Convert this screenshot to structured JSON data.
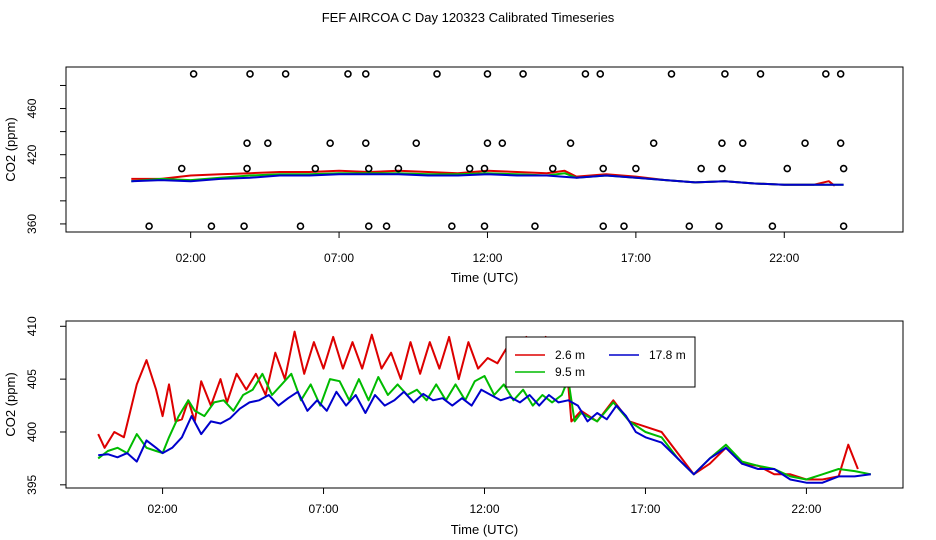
{
  "title": "FEF AIRCOA C  Day 120323  Calibrated Timeseries",
  "colors": {
    "s2_6": "#dd0000",
    "s9_5": "#00bb00",
    "s17_8": "#0000cc",
    "calib": "#000000"
  },
  "chart_data": [
    {
      "type": "line",
      "xlabel": "Time (UTC)",
      "ylabel": "CO2 (ppm)",
      "x_ticks": [
        "02:00",
        "07:00",
        "12:00",
        "17:00",
        "22:00"
      ],
      "x_tick_hours": [
        2,
        7,
        12,
        17,
        22
      ],
      "y_ticks": [
        360,
        380,
        400,
        420,
        440,
        460,
        480
      ],
      "y_tick_labels": [
        "360",
        "",
        "",
        "420",
        "",
        "460",
        ""
      ],
      "xlim": [
        -2.2,
        26.0
      ],
      "ylim": [
        353,
        496
      ],
      "grid": false,
      "series": [
        {
          "color": "#dd0000",
          "x": [
            0.0,
            1.0,
            2.0,
            3.0,
            4.0,
            5.0,
            6.0,
            7.0,
            8.0,
            9.0,
            10.0,
            11.0,
            12.0,
            13.0,
            14.0,
            14.6,
            15.0,
            16.0,
            17.0,
            18.0,
            19.0,
            20.0,
            21.0,
            22.0,
            23.0,
            23.5,
            23.7
          ],
          "values": [
            399,
            399,
            402,
            403,
            404,
            405,
            405,
            406,
            405,
            406,
            405,
            404,
            406,
            405,
            404,
            406,
            401,
            403,
            401,
            398,
            396,
            397,
            395,
            394,
            394,
            397,
            393
          ]
        },
        {
          "color": "#00bb00",
          "x": [
            0.0,
            1.0,
            2.0,
            3.0,
            4.0,
            5.0,
            6.0,
            7.0,
            8.0,
            9.0,
            10.0,
            11.0,
            12.0,
            13.0,
            14.0,
            14.6,
            15.0,
            16.0,
            17.0,
            18.0,
            19.0,
            20.0,
            21.0,
            22.0,
            23.0,
            24.0
          ],
          "values": [
            397,
            399,
            398,
            400,
            402,
            403,
            403,
            404,
            404,
            404,
            403,
            403,
            404,
            403,
            402,
            404,
            400,
            402,
            400,
            398,
            396,
            397,
            395,
            394,
            394,
            394
          ]
        },
        {
          "color": "#0000cc",
          "x": [
            0.0,
            1.0,
            2.0,
            3.0,
            4.0,
            5.0,
            6.0,
            7.0,
            8.0,
            9.0,
            10.0,
            11.0,
            12.0,
            13.0,
            14.0,
            15.0,
            16.0,
            17.0,
            18.0,
            19.0,
            20.0,
            21.0,
            22.0,
            23.0,
            24.0
          ],
          "values": [
            397,
            398,
            397,
            399,
            400,
            402,
            402,
            403,
            403,
            403,
            402,
            402,
            403,
            402,
            402,
            400,
            402,
            400,
            398,
            396,
            397,
            395,
            394,
            394,
            394
          ]
        }
      ],
      "calibration_points": [
        [
          0.6,
          358
        ],
        [
          1.7,
          408
        ],
        [
          2.1,
          490
        ],
        [
          2.7,
          358
        ],
        [
          3.8,
          358
        ],
        [
          3.9,
          408
        ],
        [
          3.9,
          430
        ],
        [
          4.0,
          490
        ],
        [
          4.6,
          430
        ],
        [
          5.2,
          490
        ],
        [
          5.7,
          358
        ],
        [
          6.2,
          408
        ],
        [
          6.7,
          430
        ],
        [
          7.3,
          490
        ],
        [
          7.9,
          490
        ],
        [
          7.9,
          430
        ],
        [
          8.0,
          408
        ],
        [
          8.0,
          358
        ],
        [
          8.6,
          358
        ],
        [
          9.0,
          408
        ],
        [
          9.6,
          430
        ],
        [
          10.3,
          490
        ],
        [
          10.8,
          358
        ],
        [
          11.4,
          408
        ],
        [
          11.9,
          358
        ],
        [
          11.9,
          408
        ],
        [
          12.0,
          430
        ],
        [
          12.0,
          490
        ],
        [
          12.5,
          430
        ],
        [
          13.2,
          490
        ],
        [
          13.6,
          358
        ],
        [
          14.2,
          408
        ],
        [
          14.8,
          430
        ],
        [
          15.3,
          490
        ],
        [
          15.8,
          490
        ],
        [
          15.9,
          408
        ],
        [
          15.9,
          358
        ],
        [
          16.6,
          358
        ],
        [
          17.0,
          408
        ],
        [
          17.6,
          430
        ],
        [
          18.2,
          490
        ],
        [
          18.8,
          358
        ],
        [
          19.2,
          408
        ],
        [
          19.8,
          358
        ],
        [
          19.9,
          408
        ],
        [
          19.9,
          430
        ],
        [
          20.0,
          490
        ],
        [
          20.6,
          430
        ],
        [
          21.2,
          490
        ],
        [
          21.6,
          358
        ],
        [
          22.1,
          408
        ],
        [
          22.7,
          430
        ],
        [
          23.4,
          490
        ],
        [
          23.9,
          490
        ],
        [
          23.9,
          430
        ],
        [
          24.0,
          408
        ],
        [
          24.0,
          358
        ]
      ]
    },
    {
      "type": "line",
      "xlabel": "Time (UTC)",
      "ylabel": "CO2 (ppm)",
      "x_ticks": [
        "02:00",
        "07:00",
        "12:00",
        "17:00",
        "22:00"
      ],
      "x_tick_hours": [
        2,
        7,
        12,
        17,
        22
      ],
      "y_ticks": [
        395,
        400,
        405,
        410
      ],
      "y_tick_labels": [
        "395",
        "400",
        "405",
        "410"
      ],
      "xlim": [
        -1.0,
        25.0
      ],
      "ylim": [
        394.7,
        410.5
      ],
      "grid": false,
      "legend_position": "top-right",
      "series": [
        {
          "name": "2.6 m",
          "color": "#dd0000",
          "x": [
            0.0,
            0.2,
            0.5,
            0.8,
            1.0,
            1.2,
            1.5,
            1.8,
            2.0,
            2.2,
            2.4,
            2.6,
            2.8,
            3.0,
            3.2,
            3.5,
            3.8,
            4.0,
            4.3,
            4.6,
            4.9,
            5.2,
            5.5,
            5.8,
            6.1,
            6.4,
            6.7,
            7.0,
            7.3,
            7.6,
            7.9,
            8.2,
            8.5,
            8.8,
            9.1,
            9.4,
            9.7,
            10.0,
            10.3,
            10.6,
            10.9,
            11.2,
            11.5,
            11.8,
            12.1,
            12.4,
            12.7,
            13.0,
            13.3,
            13.6,
            13.9,
            14.2,
            14.5,
            14.7,
            15.0,
            15.5,
            16.0,
            16.5,
            17.0,
            17.5,
            18.0,
            18.5,
            19.0,
            19.5,
            20.0,
            20.5,
            21.0,
            21.5,
            22.0,
            22.5,
            23.0,
            23.3,
            23.6
          ],
          "values": [
            399.8,
            398.5,
            400.0,
            399.5,
            402.0,
            404.5,
            406.8,
            404.0,
            401.5,
            404.5,
            401.0,
            401.2,
            403.0,
            401.0,
            404.8,
            402.5,
            405.0,
            402.8,
            405.5,
            404.0,
            405.5,
            403.5,
            407.5,
            405.0,
            409.5,
            405.5,
            408.5,
            406.0,
            409.0,
            406.0,
            408.5,
            406.0,
            409.2,
            406.0,
            407.5,
            405.0,
            408.5,
            405.5,
            408.5,
            406.0,
            409.0,
            405.0,
            408.5,
            406.0,
            407.0,
            406.5,
            408.0,
            406.0,
            409.0,
            406.5,
            409.0,
            406.0,
            408.0,
            401.0,
            402.0,
            401.0,
            403.0,
            401.0,
            400.5,
            400.0,
            398.0,
            396.0,
            397.0,
            398.5,
            397.0,
            396.8,
            396.0,
            396.0,
            395.5,
            395.5,
            395.8,
            398.8,
            396.5
          ]
        },
        {
          "name": "9.5 m",
          "color": "#00bb00",
          "x": [
            0.0,
            0.3,
            0.6,
            0.9,
            1.2,
            1.5,
            1.8,
            2.0,
            2.2,
            2.5,
            2.8,
            3.0,
            3.3,
            3.6,
            3.9,
            4.2,
            4.5,
            4.8,
            5.1,
            5.4,
            5.7,
            6.0,
            6.3,
            6.6,
            6.9,
            7.2,
            7.5,
            7.8,
            8.1,
            8.4,
            8.7,
            9.0,
            9.3,
            9.6,
            9.9,
            10.2,
            10.5,
            10.8,
            11.1,
            11.4,
            11.7,
            12.0,
            12.3,
            12.6,
            12.9,
            13.2,
            13.5,
            13.8,
            14.1,
            14.4,
            14.6,
            14.8,
            15.0,
            15.5,
            16.0,
            16.5,
            17.0,
            17.5,
            18.0,
            18.5,
            19.0,
            19.5,
            20.0,
            20.5,
            21.0,
            21.5,
            22.0,
            22.5,
            23.0,
            23.5,
            24.0
          ],
          "values": [
            397.5,
            398.2,
            398.5,
            398.0,
            399.8,
            398.5,
            398.2,
            398.0,
            399.5,
            401.5,
            403.0,
            402.0,
            401.5,
            402.8,
            403.0,
            402.0,
            403.5,
            404.0,
            405.5,
            403.5,
            404.5,
            405.5,
            403.0,
            404.5,
            402.5,
            405.0,
            404.8,
            403.0,
            405.0,
            403.0,
            405.2,
            403.5,
            404.5,
            403.5,
            404.0,
            403.0,
            404.5,
            403.0,
            404.5,
            403.0,
            404.8,
            405.3,
            403.5,
            404.5,
            403.0,
            404.0,
            402.5,
            403.5,
            402.8,
            403.5,
            405.0,
            401.0,
            401.8,
            401.0,
            402.8,
            401.0,
            400.0,
            399.5,
            397.5,
            396.0,
            397.5,
            398.8,
            397.2,
            396.8,
            396.5,
            395.8,
            395.5,
            396.0,
            396.5,
            396.3,
            396.0
          ]
        },
        {
          "name": "17.8 m",
          "color": "#0000cc",
          "x": [
            0.0,
            0.3,
            0.6,
            0.9,
            1.2,
            1.5,
            1.8,
            2.0,
            2.3,
            2.6,
            2.9,
            3.2,
            3.5,
            3.8,
            4.1,
            4.4,
            4.7,
            5.0,
            5.3,
            5.6,
            5.9,
            6.2,
            6.5,
            6.8,
            7.1,
            7.4,
            7.7,
            8.0,
            8.3,
            8.6,
            8.9,
            9.2,
            9.5,
            9.8,
            10.1,
            10.4,
            10.7,
            11.0,
            11.3,
            11.6,
            11.9,
            12.2,
            12.5,
            12.8,
            13.1,
            13.4,
            13.7,
            14.0,
            14.3,
            14.6,
            14.9,
            15.2,
            15.5,
            15.8,
            16.1,
            16.4,
            16.7,
            17.0,
            17.5,
            18.0,
            18.5,
            19.0,
            19.5,
            20.0,
            20.5,
            21.0,
            21.5,
            22.0,
            22.5,
            23.0,
            23.5,
            24.0
          ],
          "values": [
            397.8,
            397.9,
            397.6,
            398.0,
            397.2,
            399.2,
            398.5,
            398.0,
            398.5,
            399.5,
            401.5,
            399.8,
            401.0,
            400.8,
            401.3,
            402.2,
            402.8,
            403.0,
            403.5,
            402.5,
            403.2,
            403.8,
            402.0,
            403.0,
            402.0,
            403.8,
            402.5,
            403.5,
            401.8,
            403.5,
            402.5,
            403.0,
            403.8,
            402.8,
            403.6,
            403.0,
            403.2,
            402.5,
            403.2,
            402.5,
            404.0,
            403.5,
            403.0,
            403.3,
            402.8,
            403.5,
            402.5,
            403.5,
            402.8,
            403.0,
            402.5,
            401.0,
            401.8,
            401.2,
            402.5,
            401.5,
            400.0,
            399.5,
            399.0,
            397.5,
            396.0,
            397.5,
            398.5,
            397.0,
            396.5,
            396.5,
            395.5,
            395.2,
            395.2,
            395.8,
            395.8,
            396.0
          ]
        }
      ]
    }
  ]
}
